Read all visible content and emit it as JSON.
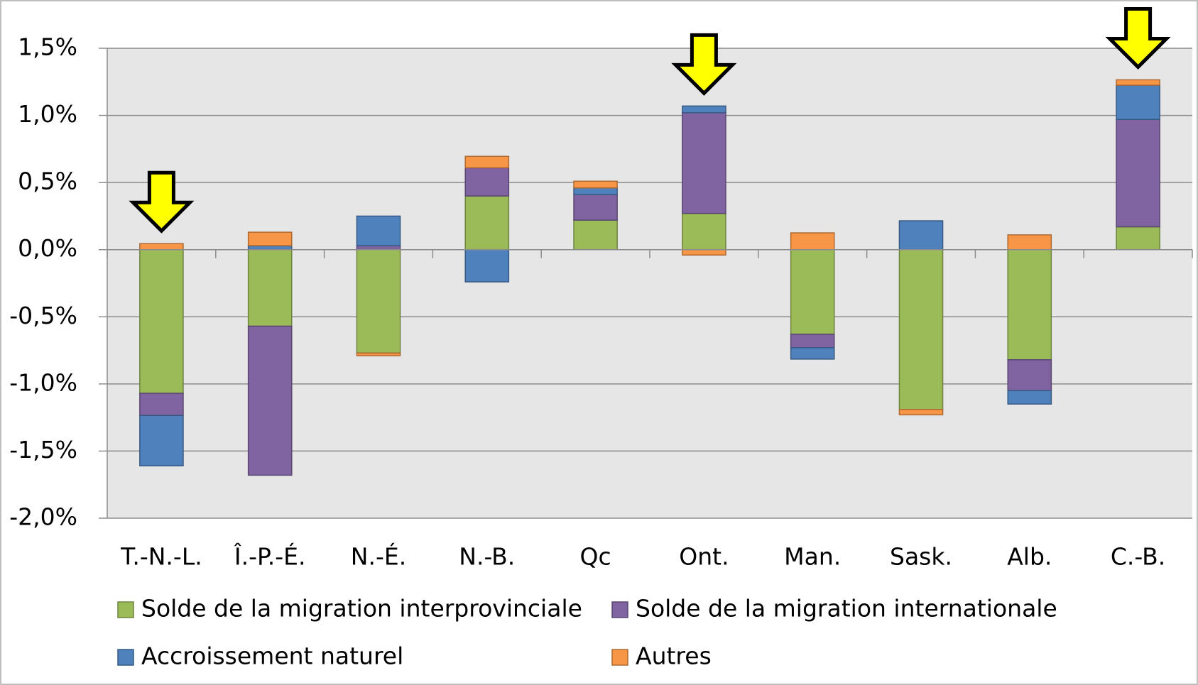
{
  "chart_data": {
    "type": "stacked_bar",
    "categories": [
      "T.-N.-L.",
      "Î.-P.-É.",
      "N.-É.",
      "N.-B.",
      "Qc",
      "Ont.",
      "Man.",
      "Sask.",
      "Alb.",
      "C.-B."
    ],
    "series": [
      {
        "name": "Solde de la migration interprovinciale",
        "color": "#9bbb59",
        "values": [
          -1.07,
          -0.57,
          -0.77,
          0.4,
          0.22,
          0.27,
          -0.63,
          -1.19,
          -0.82,
          0.17
        ]
      },
      {
        "name": "Solde de la migration internationale",
        "color": "#8064a2",
        "values": [
          -0.165,
          -1.11,
          0.03,
          0.21,
          0.19,
          0.75,
          -0.1,
          0,
          -0.23,
          0.8
        ]
      },
      {
        "name": "Accroissement naturel",
        "color": "#4f81bd",
        "values": [
          -0.375,
          0.03,
          0.22,
          -0.24,
          0.05,
          0.05,
          -0.085,
          0.215,
          -0.1,
          0.255
        ]
      },
      {
        "name": "Autres",
        "color": "#f79646",
        "values": [
          0.045,
          0.1,
          -0.02,
          0.085,
          0.05,
          -0.04,
          0.125,
          -0.04,
          0.11,
          0.04
        ]
      }
    ],
    "ylim": [
      -2.0,
      1.5
    ],
    "yticks": [
      {
        "value": -2.0,
        "label": "-2,0%"
      },
      {
        "value": -1.5,
        "label": "-1,5%"
      },
      {
        "value": -1.0,
        "label": "-1,0%"
      },
      {
        "value": -0.5,
        "label": "-0,5%"
      },
      {
        "value": 0,
        "label": "0,0%"
      },
      {
        "value": 0.5,
        "label": "0,5%"
      },
      {
        "value": 1.0,
        "label": "1,0%"
      },
      {
        "value": 1.5,
        "label": "1,5%"
      }
    ],
    "grid": true,
    "legend": "bottom"
  }
}
